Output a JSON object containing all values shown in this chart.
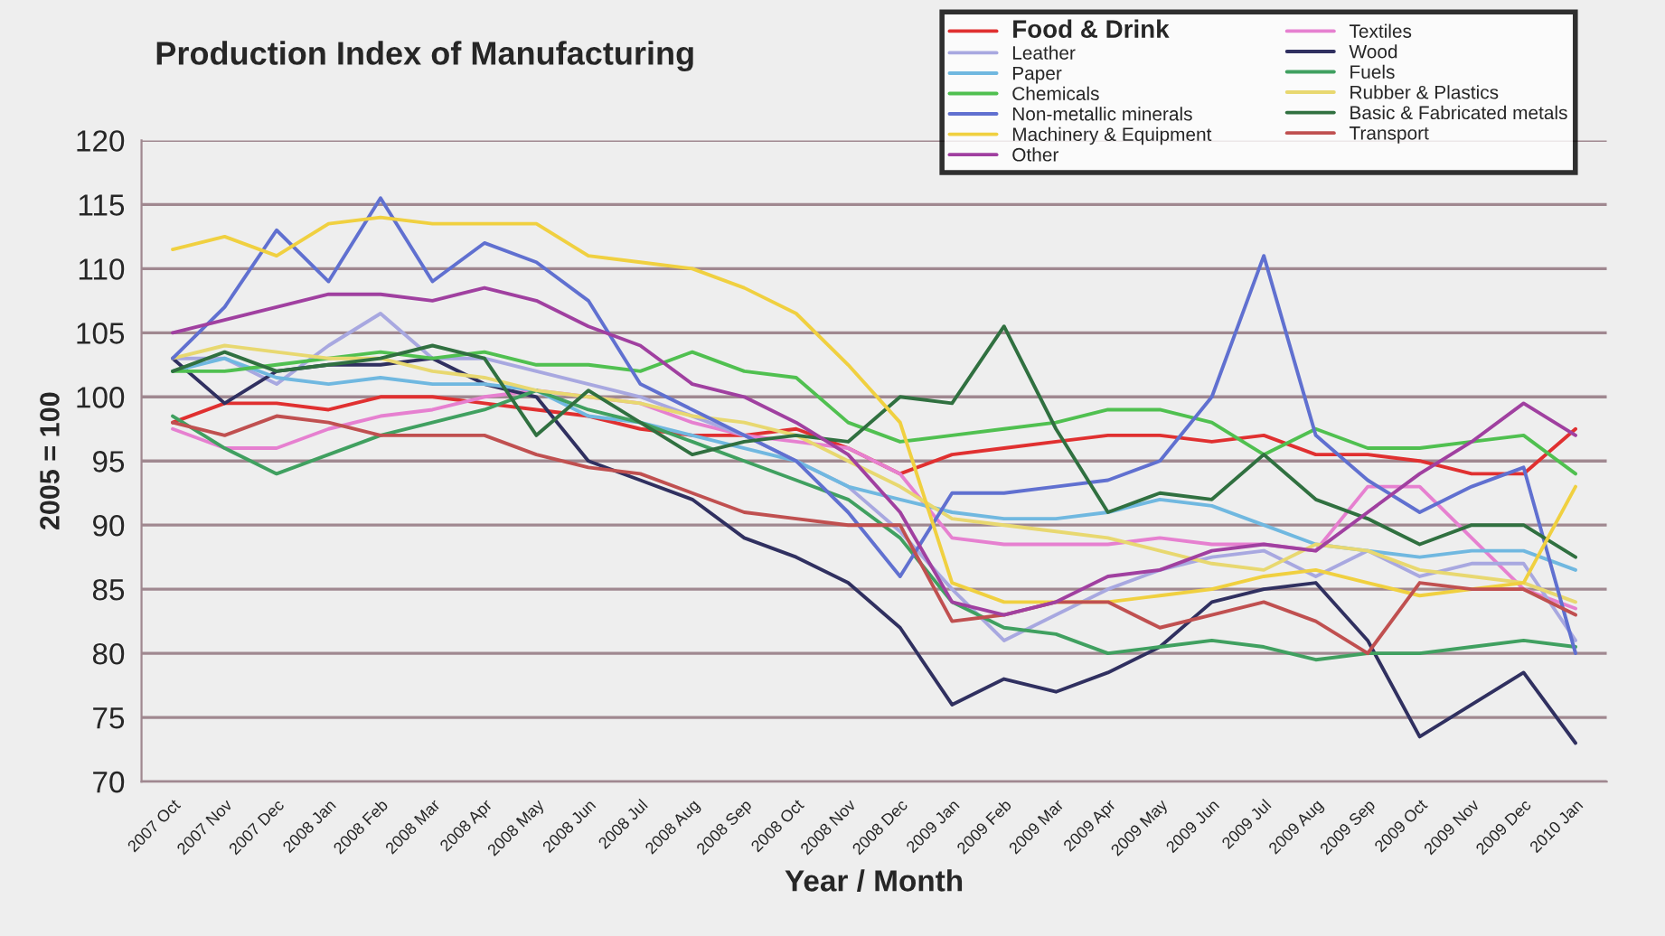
{
  "chart_data": {
    "type": "line",
    "title": "Production Index of Manufacturing",
    "xlabel": "Year / Month",
    "ylabel": "2005 = 100",
    "categories": [
      "2007 Oct",
      "2007 Nov",
      "2007 Dec",
      "2008 Jan",
      "2008 Feb",
      "2008 Mar",
      "2008 Apr",
      "2008 May",
      "2008 Jun",
      "2008 Jul",
      "2008 Aug",
      "2008 Sep",
      "2008 Oct",
      "2008 Nov",
      "2008 Dec",
      "2009 Jan",
      "2009 Feb",
      "2009 Mar",
      "2009 Apr",
      "2009 May",
      "2009 Jun",
      "2009 Jul",
      "2009 Aug",
      "2009 Sep",
      "2009 Oct",
      "2009 Nov",
      "2009 Dec",
      "2010 Jan"
    ],
    "series": [
      {
        "name": "Food & Drink",
        "color": "#e03030",
        "values": [
          98,
          99.5,
          99.5,
          99,
          100,
          100,
          99.5,
          99,
          98.5,
          97.5,
          97,
          97,
          97.5,
          96,
          94,
          95.5,
          96,
          96.5,
          97,
          97,
          96.5,
          97,
          95.5,
          95.5,
          95,
          94,
          94,
          97.5
        ]
      },
      {
        "name": "Textiles",
        "color": "#e680d0",
        "values": [
          97.5,
          96,
          96,
          97.5,
          98.5,
          99,
          100,
          100.5,
          100,
          99.5,
          98,
          97,
          96.5,
          96,
          94,
          89,
          88.5,
          88.5,
          88.5,
          89,
          88.5,
          88.5,
          88,
          93,
          93,
          89,
          85,
          83.5
        ]
      },
      {
        "name": "Leather",
        "color": "#a8a8e0",
        "values": [
          103,
          103,
          101,
          104,
          106.5,
          103,
          103,
          102,
          101,
          100,
          98.5,
          97,
          95,
          93,
          89.5,
          85,
          81,
          83,
          85,
          86.5,
          87.5,
          88,
          86,
          88,
          86,
          87,
          87,
          81
        ]
      },
      {
        "name": "Wood",
        "color": "#303060",
        "values": [
          103,
          99.5,
          102,
          102.5,
          102.5,
          103,
          101,
          100,
          95,
          93.5,
          92,
          89,
          87.5,
          85.5,
          82,
          76,
          78,
          77,
          78.5,
          80.5,
          84,
          85,
          85.5,
          81,
          73.5,
          76,
          78.5,
          73
        ]
      },
      {
        "name": "Paper",
        "color": "#70b8e0",
        "values": [
          102,
          103,
          101.5,
          101,
          101.5,
          101,
          101,
          100.5,
          98.5,
          98,
          97,
          96,
          95,
          93,
          92,
          91,
          90.5,
          90.5,
          91,
          92,
          91.5,
          90,
          88.5,
          88,
          87.5,
          88,
          88,
          86.5
        ]
      },
      {
        "name": "Fuels",
        "color": "#40a060",
        "values": [
          98.5,
          96,
          94,
          95.5,
          97,
          98,
          99,
          100.5,
          99,
          98,
          96.5,
          95,
          93.5,
          92,
          89,
          84,
          82,
          81.5,
          80,
          80.5,
          81,
          80.5,
          79.5,
          80,
          80,
          80.5,
          81,
          80.5
        ]
      },
      {
        "name": "Chemicals",
        "color": "#50c050",
        "values": [
          102,
          102,
          102.5,
          103,
          103.5,
          103,
          103.5,
          102.5,
          102.5,
          102,
          103.5,
          102,
          101.5,
          98,
          96.5,
          97,
          97.5,
          98,
          99,
          99,
          98,
          95.5,
          97.5,
          96,
          96,
          96.5,
          97,
          94
        ]
      },
      {
        "name": "Rubber & Plastics",
        "color": "#e8d870",
        "values": [
          103,
          104,
          103.5,
          103,
          103,
          102,
          101.5,
          100.5,
          100,
          99.5,
          98.5,
          98,
          97,
          95,
          93,
          90.5,
          90,
          89.5,
          89,
          88,
          87,
          86.5,
          88.5,
          88,
          86.5,
          86,
          85.5,
          84
        ]
      },
      {
        "name": "Non-metallic minerals",
        "color": "#6070d0",
        "values": [
          103,
          107,
          113,
          109,
          115.5,
          109,
          112,
          110.5,
          107.5,
          101,
          99,
          97,
          95,
          91,
          86,
          92.5,
          92.5,
          93,
          93.5,
          95,
          100,
          111,
          97,
          93.5,
          91,
          93,
          94.5,
          80
        ]
      },
      {
        "name": "Basic & Fabricated metals",
        "color": "#307040",
        "values": [
          102,
          103.5,
          102,
          102.5,
          103,
          104,
          103,
          97,
          100.5,
          98,
          95.5,
          96.5,
          97,
          96.5,
          100,
          99.5,
          105.5,
          97.5,
          91,
          92.5,
          92,
          95.5,
          92,
          90.5,
          88.5,
          90,
          90,
          87.5
        ]
      },
      {
        "name": "Machinery & Equipment",
        "color": "#f0d040",
        "values": [
          111.5,
          112.5,
          111,
          113.5,
          114,
          113.5,
          113.5,
          113.5,
          111,
          110.5,
          110,
          108.5,
          106.5,
          102.5,
          98,
          85.5,
          84,
          84,
          84,
          84.5,
          85,
          86,
          86.5,
          85.5,
          84.5,
          85,
          85.5,
          93
        ]
      },
      {
        "name": "Transport",
        "color": "#c05050",
        "values": [
          98,
          97,
          98.5,
          98,
          97,
          97,
          97,
          95.5,
          94.5,
          94,
          92.5,
          91,
          90.5,
          90,
          90,
          82.5,
          83,
          84,
          84,
          82,
          83,
          84,
          82.5,
          80,
          85.5,
          85,
          85,
          83
        ]
      },
      {
        "name": "Other",
        "color": "#a040a0",
        "values": [
          105,
          106,
          107,
          108,
          108,
          107.5,
          108.5,
          107.5,
          105.5,
          104,
          101,
          100,
          98,
          95.5,
          91,
          84,
          83,
          84,
          86,
          86.5,
          88,
          88.5,
          88,
          91,
          94,
          96.5,
          99.5,
          97
        ]
      }
    ],
    "ylim": [
      70,
      120
    ],
    "yticks": [
      70,
      75,
      80,
      85,
      90,
      95,
      100,
      105,
      110,
      115,
      120
    ],
    "grid": "y",
    "legend": "top right",
    "marker": "none",
    "line_style": "solid"
  }
}
